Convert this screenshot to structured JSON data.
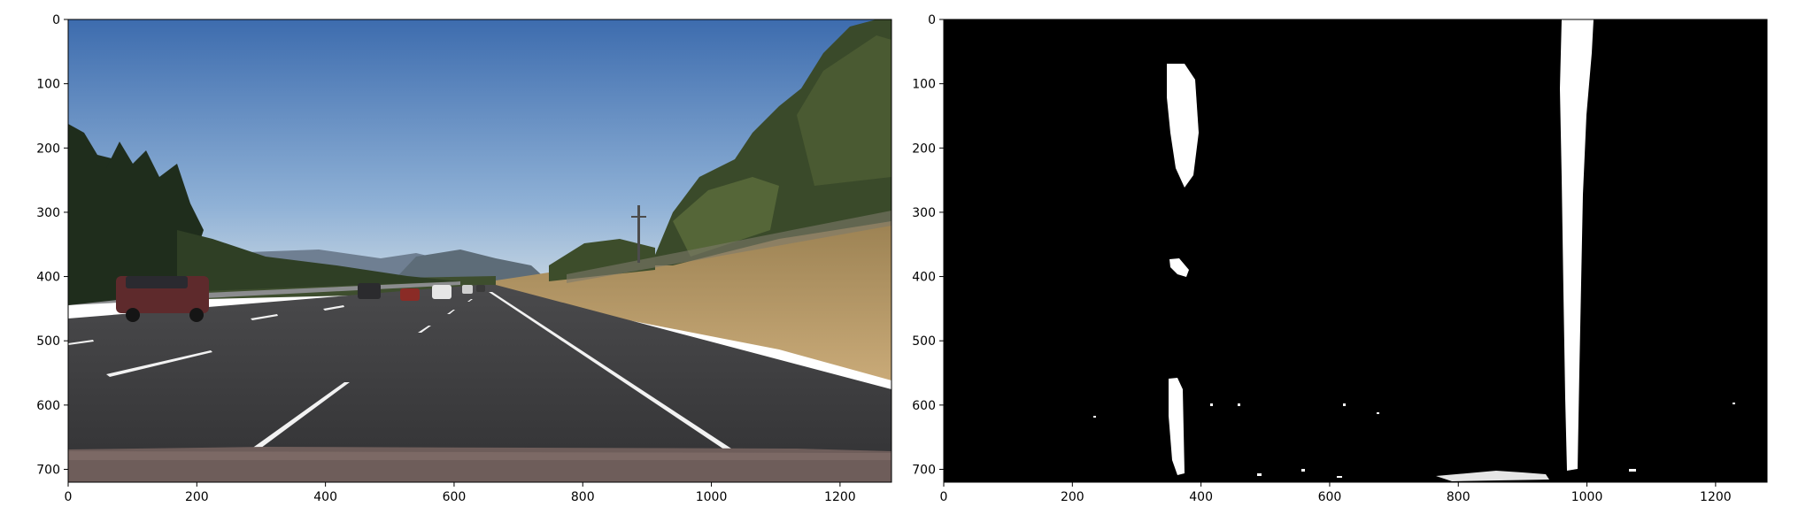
{
  "figure": {
    "panels": [
      {
        "name": "original-road-image",
        "content": "highway photo: road with lane markings, cars on the left, trees and hills in the background",
        "x_ticks": [
          0,
          200,
          400,
          600,
          800,
          1000,
          1200
        ],
        "y_ticks": [
          0,
          100,
          200,
          300,
          400,
          500,
          600,
          700
        ],
        "x_range": [
          0,
          1280
        ],
        "y_range": [
          0,
          720
        ]
      },
      {
        "name": "binary-lane-mask",
        "content": "black background with white thresholded lane line pixels",
        "x_ticks": [
          0,
          200,
          400,
          600,
          800,
          1000,
          1200
        ],
        "y_ticks": [
          0,
          100,
          200,
          300,
          400,
          500,
          600,
          700
        ],
        "x_range": [
          0,
          1280
        ],
        "y_range": [
          0,
          720
        ]
      }
    ],
    "colors": {
      "sky_top": "#3f6fb0",
      "sky_bottom": "#b9cde0",
      "road": "#3c3c3e",
      "grass": "#b99a66",
      "trees": "#2e3f26",
      "lane_mark": "#f2f2f2",
      "mask_bg": "#000000",
      "mask_fg": "#ffffff"
    }
  }
}
